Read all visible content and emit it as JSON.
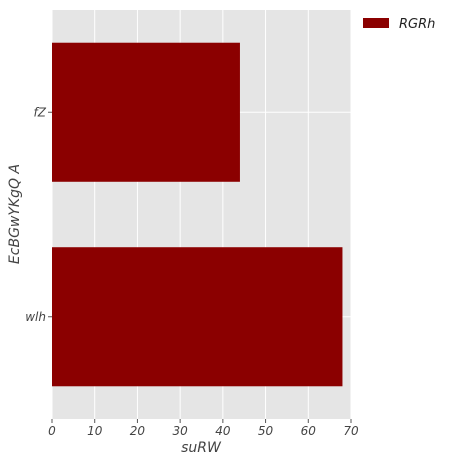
{
  "chart_data": {
    "type": "bar",
    "orientation": "horizontal",
    "categories": [
      "fZ",
      "wlh"
    ],
    "series": [
      {
        "name": "RGRh",
        "values": [
          44,
          68
        ],
        "color": "#8b0000"
      }
    ],
    "xlabel": "suRW",
    "ylabel": "EcBGwYKgQ A",
    "xlim": [
      0,
      70
    ],
    "xticks": [
      0,
      10,
      20,
      30,
      40,
      50,
      60,
      70
    ],
    "grid": true,
    "legend_position": "top-right outside",
    "background_color": "#e5e5e5",
    "grid_color": "#ffffff"
  }
}
